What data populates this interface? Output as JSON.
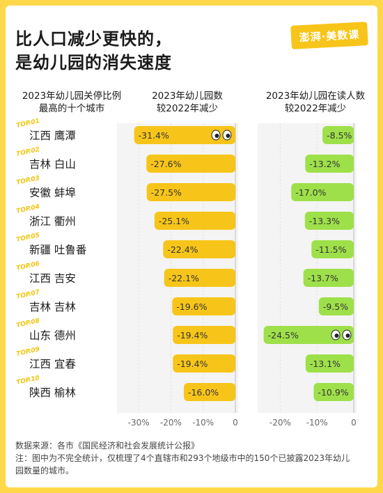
{
  "title": {
    "line1": "比人口减少更快的，",
    "line2": "是幼儿园的消失速度"
  },
  "logo_text": "澎湃·美数课",
  "headers": {
    "city_line1": "2023年幼儿园关停比例",
    "city_line2": "最高的十个城市",
    "kg_line1": "2023年幼儿园数",
    "kg_line2": "较2022年减少",
    "enroll_line1": "2023年幼儿园在读人数",
    "enroll_line2": "较2022年减少"
  },
  "colors": {
    "background": "#ffd84a",
    "kg_bar": "#f7c51a",
    "enroll_bar": "#9ee04a",
    "label_text": "#333333"
  },
  "chart_data": {
    "type": "bar",
    "orientation": "horizontal",
    "categories": [
      "江西 鹰潭",
      "吉林 白山",
      "安徽 蚌埠",
      "浙江 衢州",
      "新疆 吐鲁番",
      "江西 吉安",
      "吉林 吉林",
      "山东 德州",
      "江西 宜春",
      "陕西 榆林"
    ],
    "rank_badges": [
      "TOP.01",
      "TOP.02",
      "TOP.03",
      "TOP.04",
      "TOP.05",
      "TOP.06",
      "TOP.07",
      "TOP.08",
      "TOP.09",
      "TOP.10"
    ],
    "series": [
      {
        "name": "2023年幼儿园数较2022年减少",
        "values": [
          -31.4,
          -27.6,
          -27.5,
          -25.1,
          -22.4,
          -22.1,
          -19.6,
          -19.4,
          -19.4,
          -16.0
        ],
        "labels": [
          "-31.4%",
          "-27.6%",
          "-27.5%",
          "-25.1%",
          "-22.4%",
          "-22.1%",
          "-19.6%",
          "-19.4%",
          "-19.4%",
          "-16.0%"
        ],
        "xlim": [
          -35,
          0
        ],
        "ticks": [
          -30,
          -20,
          -10,
          0
        ],
        "tick_labels": [
          "-30%",
          "-20%",
          "-10%",
          "0"
        ]
      },
      {
        "name": "2023年幼儿园在读人数较2022年减少",
        "values": [
          -8.5,
          -13.2,
          -17.0,
          -13.3,
          -11.5,
          -13.7,
          -9.5,
          -24.5,
          -13.1,
          -10.9
        ],
        "labels": [
          "-8.5%",
          "-13.2%",
          "-17.0%",
          "-13.3%",
          "-11.5%",
          "-13.7%",
          "-9.5%",
          "-24.5%",
          "-13.1%",
          "-10.9%"
        ],
        "xlim": [
          -25,
          0
        ],
        "ticks": [
          -20,
          -10,
          0
        ],
        "tick_labels": [
          "-20%",
          "-10%",
          "0"
        ]
      }
    ]
  },
  "source": "数据来源：各市《国民经济和社会发展统计公报》",
  "note": "注：图中为不完全统计，仅梳理了4个直辖市和293个地级市中的150个已披露2023年幼儿园数量的城市。"
}
